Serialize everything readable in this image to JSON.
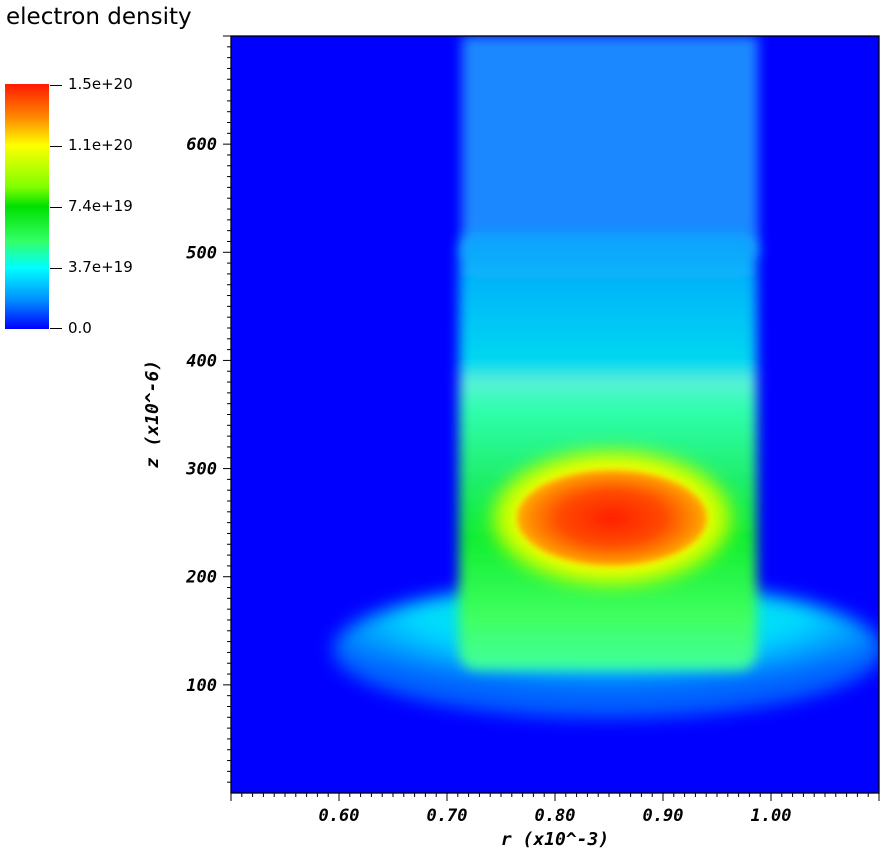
{
  "chart_data": {
    "type": "heatmap",
    "title": "electron density",
    "xlabel": "r (x10^-3)",
    "ylabel": "z (x10^-6)",
    "xlim": [
      0.5,
      1.1
    ],
    "ylim": [
      0,
      700
    ],
    "x_ticks": [
      "0.60",
      "0.70",
      "0.80",
      "0.90",
      "1.00"
    ],
    "x_tick_values": [
      0.6,
      0.7,
      0.8,
      0.9,
      1.0
    ],
    "y_ticks": [
      "100",
      "200",
      "300",
      "400",
      "500",
      "600"
    ],
    "y_tick_values": [
      100,
      200,
      300,
      400,
      500,
      600
    ],
    "colorbar": {
      "labels": [
        "1.5e+20",
        "1.1e+20",
        "7.4e+19",
        "3.7e+19",
        "0.0"
      ],
      "values": [
        1.5e+20,
        1.1e+20,
        7.4e+19,
        3.7e+19,
        0
      ],
      "range": [
        0,
        1.5e+20
      ],
      "colormap": [
        "#0000ff",
        "#00ffff",
        "#00e000",
        "#ffff00",
        "#ff1a00"
      ]
    },
    "background_color": "#0000ff",
    "regions": [
      {
        "shape": "ellipse",
        "r_center": 0.85,
        "z_center": 248,
        "r_halfwidth": 0.087,
        "z_halfwidth": 52,
        "value": 1.4e+20
      },
      {
        "shape": "ellipse",
        "r_center": 0.85,
        "z_center": 255,
        "r_halfwidth": 0.108,
        "z_halfwidth": 80,
        "value": 1.05e+20
      },
      {
        "shape": "column",
        "r_range": [
          0.71,
          0.99
        ],
        "z_range": [
          190,
          520
        ],
        "value": 6e+19
      },
      {
        "shape": "column",
        "r_range": [
          0.71,
          0.99
        ],
        "z_range": [
          520,
          700
        ],
        "value": 3e+19
      },
      {
        "shape": "skirt",
        "r_range": [
          0.6,
          1.1
        ],
        "z_range": [
          70,
          200
        ],
        "value": 3.5e+19
      }
    ]
  }
}
